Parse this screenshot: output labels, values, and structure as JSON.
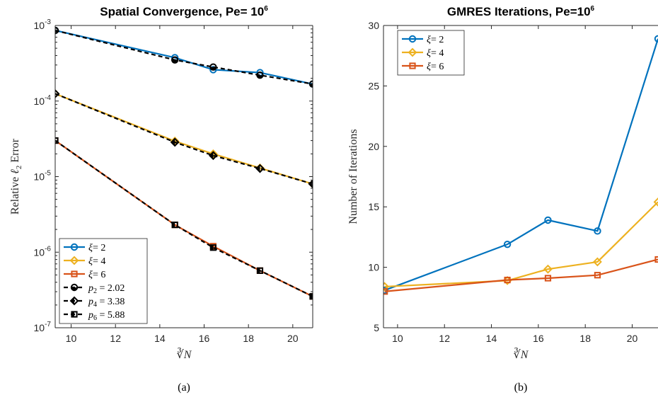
{
  "chart_data": [
    {
      "type": "line",
      "panel": "(a)",
      "title": "Spatial Convergence, Pe= 10^6",
      "title_parts": {
        "text": "Spatial Convergence, Pe= 10",
        "exponent": "6"
      },
      "xlabel": "∛N",
      "ylabel": "Relative ℓ2 Error",
      "ylabel_parts": {
        "pre": "Relative ",
        "ell": "ℓ",
        "sub": "2",
        "post": " Error"
      },
      "xlim": [
        9.28,
        20.9
      ],
      "ylim": [
        1e-07,
        0.001
      ],
      "yscale": "log",
      "xticks": [
        10,
        12,
        14,
        16,
        18,
        20
      ],
      "yticks": [
        {
          "base": "10",
          "exp": "-3",
          "value": 0.001
        },
        {
          "base": "10",
          "exp": "-4",
          "value": 0.0001
        },
        {
          "base": "10",
          "exp": "-5",
          "value": 1e-05
        },
        {
          "base": "10",
          "exp": "-6",
          "value": 1e-06
        },
        {
          "base": "10",
          "exp": "-7",
          "value": 1e-07
        }
      ],
      "grid": false,
      "legend_position": "bottom-left",
      "series": [
        {
          "name": "ξ= 2",
          "legend_parts": {
            "sym": "ξ",
            "rest": "= 2"
          },
          "color": "#0072BD",
          "marker": "circle",
          "style": "solid",
          "x": [
            9.28,
            14.68,
            16.41,
            18.52,
            20.9
          ],
          "y": [
            0.00086,
            0.000375,
            0.00026,
            0.000238,
            0.000168
          ]
        },
        {
          "name": "ξ= 4",
          "legend_parts": {
            "sym": "ξ",
            "rest": "= 4"
          },
          "color": "#EDB120",
          "marker": "diamond",
          "style": "solid",
          "x": [
            9.28,
            14.68,
            16.41,
            18.52,
            20.9
          ],
          "y": [
            0.000125,
            2.95e-05,
            2e-05,
            1.3e-05,
            8e-06
          ]
        },
        {
          "name": "ξ= 6",
          "legend_parts": {
            "sym": "ξ",
            "rest": "= 6"
          },
          "color": "#D95319",
          "marker": "square",
          "style": "solid",
          "x": [
            9.28,
            14.68,
            16.41,
            18.52,
            20.9
          ],
          "y": [
            3e-05,
            2.3e-06,
            1.2e-06,
            5.7e-07,
            2.6e-07
          ]
        },
        {
          "name": "p2 = 2.02",
          "legend_parts": {
            "sym": "p",
            "sub": "2",
            "rest": " = 2.02"
          },
          "color": "#000000",
          "marker": "circle-half",
          "style": "dashed",
          "x": [
            9.28,
            14.68,
            16.41,
            18.52,
            20.9
          ],
          "y": [
            0.00086,
            0.00035,
            0.000282,
            0.00022,
            0.000168
          ]
        },
        {
          "name": "p4 = 3.38",
          "legend_parts": {
            "sym": "p",
            "sub": "4",
            "rest": " = 3.38"
          },
          "color": "#000000",
          "marker": "diamond-half",
          "style": "dashed",
          "x": [
            9.28,
            14.68,
            16.41,
            18.52,
            20.9
          ],
          "y": [
            0.000125,
            2.85e-05,
            1.9e-05,
            1.28e-05,
            8e-06
          ]
        },
        {
          "name": "p6 = 5.88",
          "legend_parts": {
            "sym": "p",
            "sub": "6",
            "rest": " = 5.88"
          },
          "color": "#000000",
          "marker": "square-half",
          "style": "dashed",
          "x": [
            9.28,
            14.68,
            16.41,
            18.52,
            20.9
          ],
          "y": [
            3e-05,
            2.3e-06,
            1.15e-06,
            5.7e-07,
            2.6e-07
          ]
        }
      ]
    },
    {
      "type": "line",
      "panel": "(b)",
      "title": "GMRES Iterations, Pe=10^6",
      "title_parts": {
        "text": "GMRES Iterations, Pe=10",
        "exponent": "6"
      },
      "xlabel": "∛N",
      "ylabel": "Number of Iterations",
      "xlim": [
        9.4,
        21.1
      ],
      "ylim": [
        5,
        30
      ],
      "yscale": "linear",
      "xticks": [
        10,
        12,
        14,
        16,
        18,
        20
      ],
      "yticks": [
        5,
        10,
        15,
        20,
        25,
        30
      ],
      "grid": false,
      "legend_position": "top-left",
      "series": [
        {
          "name": "ξ= 2",
          "legend_parts": {
            "sym": "ξ",
            "rest": "= 2"
          },
          "color": "#0072BD",
          "marker": "circle",
          "x": [
            9.45,
            14.68,
            16.41,
            18.52,
            21.1
          ],
          "y": [
            8.1,
            11.9,
            13.9,
            13.0,
            28.9
          ]
        },
        {
          "name": "ξ= 4",
          "legend_parts": {
            "sym": "ξ",
            "rest": "= 4"
          },
          "color": "#EDB120",
          "marker": "diamond",
          "x": [
            9.45,
            14.68,
            16.41,
            18.52,
            21.1
          ],
          "y": [
            8.4,
            8.9,
            9.85,
            10.45,
            15.4
          ]
        },
        {
          "name": "ξ= 6",
          "legend_parts": {
            "sym": "ξ",
            "rest": "= 6"
          },
          "color": "#D95319",
          "marker": "square",
          "x": [
            9.45,
            14.68,
            16.41,
            18.52,
            21.1
          ],
          "y": [
            8.0,
            8.95,
            9.1,
            9.35,
            10.65
          ]
        }
      ]
    }
  ]
}
